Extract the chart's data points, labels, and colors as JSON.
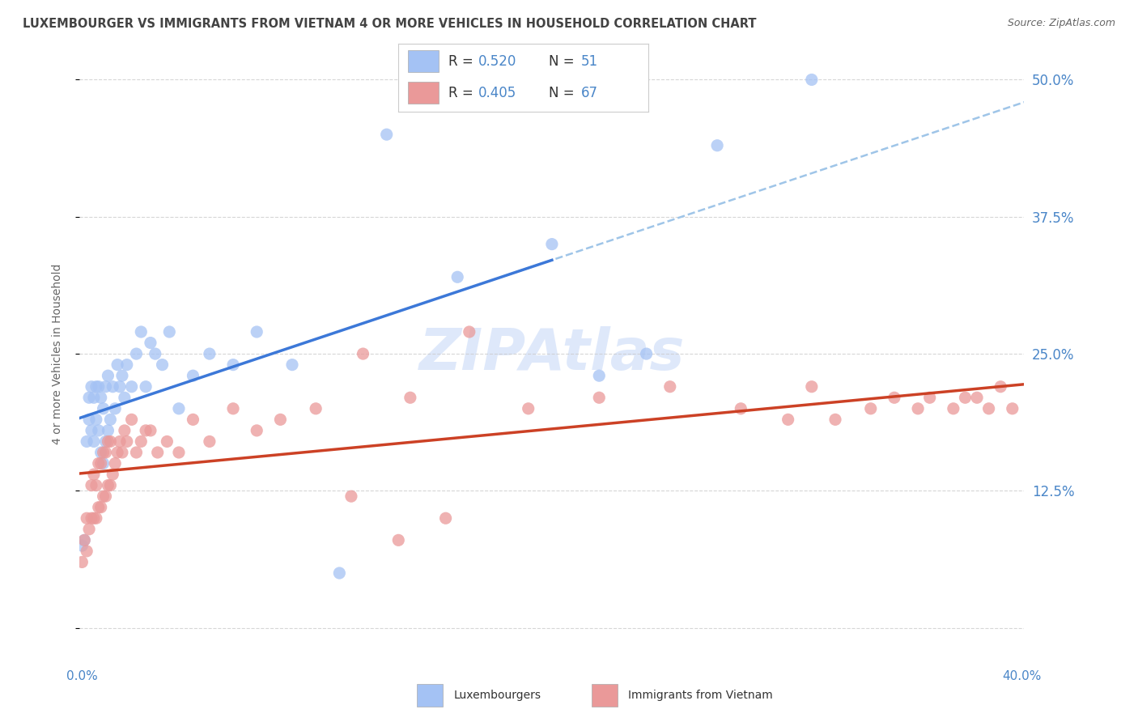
{
  "title": "LUXEMBOURGER VS IMMIGRANTS FROM VIETNAM 4 OR MORE VEHICLES IN HOUSEHOLD CORRELATION CHART",
  "source": "Source: ZipAtlas.com",
  "ylabel": "4 or more Vehicles in Household",
  "watermark": "ZIPAtlas",
  "blue_color": "#a4c2f4",
  "pink_color": "#ea9999",
  "blue_line_color": "#3c78d8",
  "pink_line_color": "#cc4125",
  "dashed_line_color": "#9fc5e8",
  "background_color": "#ffffff",
  "grid_color": "#cccccc",
  "xlim": [
    0.0,
    0.4
  ],
  "ylim": [
    -0.02,
    0.52
  ],
  "yticks": [
    0.0,
    0.125,
    0.25,
    0.375,
    0.5
  ],
  "ytick_labels": [
    "",
    "12.5%",
    "25.0%",
    "37.5%",
    "50.0%"
  ],
  "xtick_left_label": "0.0%",
  "xtick_right_label": "40.0%",
  "legend1_R": "0.520",
  "legend1_N": "51",
  "legend2_R": "0.405",
  "legend2_N": "67",
  "bottom_legend1": "Luxembourgers",
  "bottom_legend2": "Immigrants from Vietnam",
  "blue_scatter_x": [
    0.001,
    0.002,
    0.003,
    0.004,
    0.004,
    0.005,
    0.005,
    0.006,
    0.006,
    0.007,
    0.007,
    0.008,
    0.008,
    0.009,
    0.009,
    0.01,
    0.01,
    0.011,
    0.011,
    0.012,
    0.012,
    0.013,
    0.014,
    0.015,
    0.016,
    0.017,
    0.018,
    0.019,
    0.02,
    0.022,
    0.024,
    0.026,
    0.028,
    0.03,
    0.032,
    0.035,
    0.038,
    0.042,
    0.048,
    0.055,
    0.065,
    0.075,
    0.09,
    0.11,
    0.13,
    0.16,
    0.2,
    0.22,
    0.24,
    0.27,
    0.31
  ],
  "blue_scatter_y": [
    0.075,
    0.08,
    0.17,
    0.19,
    0.21,
    0.18,
    0.22,
    0.17,
    0.21,
    0.19,
    0.22,
    0.18,
    0.22,
    0.16,
    0.21,
    0.15,
    0.2,
    0.17,
    0.22,
    0.18,
    0.23,
    0.19,
    0.22,
    0.2,
    0.24,
    0.22,
    0.23,
    0.21,
    0.24,
    0.22,
    0.25,
    0.27,
    0.22,
    0.26,
    0.25,
    0.24,
    0.27,
    0.2,
    0.23,
    0.25,
    0.24,
    0.27,
    0.24,
    0.05,
    0.45,
    0.32,
    0.35,
    0.23,
    0.25,
    0.44,
    0.5
  ],
  "pink_scatter_x": [
    0.001,
    0.002,
    0.003,
    0.003,
    0.004,
    0.005,
    0.005,
    0.006,
    0.006,
    0.007,
    0.007,
    0.008,
    0.008,
    0.009,
    0.009,
    0.01,
    0.01,
    0.011,
    0.011,
    0.012,
    0.012,
    0.013,
    0.013,
    0.014,
    0.015,
    0.016,
    0.017,
    0.018,
    0.019,
    0.02,
    0.022,
    0.024,
    0.026,
    0.028,
    0.03,
    0.033,
    0.037,
    0.042,
    0.048,
    0.055,
    0.065,
    0.075,
    0.085,
    0.1,
    0.12,
    0.14,
    0.165,
    0.19,
    0.22,
    0.25,
    0.28,
    0.3,
    0.31,
    0.32,
    0.335,
    0.345,
    0.355,
    0.36,
    0.37,
    0.375,
    0.38,
    0.385,
    0.39,
    0.395,
    0.115,
    0.135,
    0.155
  ],
  "pink_scatter_y": [
    0.06,
    0.08,
    0.07,
    0.1,
    0.09,
    0.1,
    0.13,
    0.1,
    0.14,
    0.1,
    0.13,
    0.11,
    0.15,
    0.11,
    0.15,
    0.12,
    0.16,
    0.12,
    0.16,
    0.13,
    0.17,
    0.13,
    0.17,
    0.14,
    0.15,
    0.16,
    0.17,
    0.16,
    0.18,
    0.17,
    0.19,
    0.16,
    0.17,
    0.18,
    0.18,
    0.16,
    0.17,
    0.16,
    0.19,
    0.17,
    0.2,
    0.18,
    0.19,
    0.2,
    0.25,
    0.21,
    0.27,
    0.2,
    0.21,
    0.22,
    0.2,
    0.19,
    0.22,
    0.19,
    0.2,
    0.21,
    0.2,
    0.21,
    0.2,
    0.21,
    0.21,
    0.2,
    0.22,
    0.2,
    0.12,
    0.08,
    0.1
  ],
  "blue_line_x_end": 0.2,
  "dashed_line_x_start": 0.18,
  "dashed_line_x_end": 0.4,
  "title_color": "#434343",
  "source_color": "#666666",
  "axis_label_color": "#666666",
  "tick_color": "#4a86c8",
  "legend_text_color": "#4a86c8",
  "legend_label_color": "#333333"
}
